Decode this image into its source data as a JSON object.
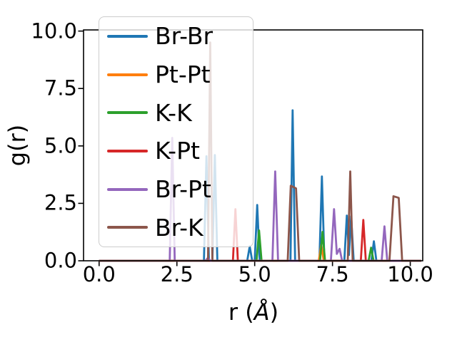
{
  "chart_data": {
    "type": "line",
    "title": "",
    "xlabel": "r (Å)",
    "xlabel_prefix": "r (",
    "xlabel_symbol": "Å",
    "xlabel_suffix": ")",
    "ylabel": "g(r)",
    "xlim": [
      -0.5,
      10.4
    ],
    "ylim": [
      0,
      10.05
    ],
    "xticks": [
      0,
      2.5,
      5,
      7.5,
      10
    ],
    "yticks": [
      0,
      2.5,
      5,
      7.5,
      10
    ],
    "xticklabels": [
      "0.0",
      "2.5",
      "5.0",
      "7.5",
      "10.0"
    ],
    "yticklabels": [
      "0.0",
      "2.5",
      "5.0",
      "7.5",
      "10.0"
    ],
    "grid": false,
    "legend_position": "upper left",
    "background_color": "#ffffff",
    "axis_color": "#000000",
    "series": [
      {
        "name": "Br-Br",
        "color": "#1f77b4",
        "points": [
          [
            0,
            0
          ],
          [
            3.37,
            0
          ],
          [
            3.45,
            4.55
          ],
          [
            3.53,
            0
          ],
          [
            3.64,
            0
          ],
          [
            3.72,
            4.6
          ],
          [
            3.8,
            0
          ],
          [
            4.76,
            0
          ],
          [
            4.84,
            0.63
          ],
          [
            4.92,
            0
          ],
          [
            5.0,
            0
          ],
          [
            5.08,
            2.43
          ],
          [
            5.16,
            0
          ],
          [
            6.15,
            0
          ],
          [
            6.22,
            6.55
          ],
          [
            6.3,
            0
          ],
          [
            7.08,
            0
          ],
          [
            7.16,
            3.67
          ],
          [
            7.24,
            0
          ],
          [
            7.88,
            0
          ],
          [
            7.96,
            1.97
          ],
          [
            8.03,
            0.25
          ],
          [
            8.1,
            1.94
          ],
          [
            8.18,
            0
          ],
          [
            8.75,
            0
          ],
          [
            8.83,
            0.85
          ],
          [
            8.91,
            0
          ],
          [
            10.35,
            0
          ]
        ]
      },
      {
        "name": "Pt-Pt",
        "color": "#ff7f0e",
        "points": [
          [
            0,
            0
          ],
          [
            7.06,
            0
          ],
          [
            7.14,
            0.7
          ],
          [
            7.22,
            0
          ],
          [
            10.35,
            0
          ]
        ]
      },
      {
        "name": "K-K",
        "color": "#2ca02c",
        "points": [
          [
            0,
            0
          ],
          [
            5.06,
            0
          ],
          [
            5.14,
            1.32
          ],
          [
            5.22,
            0
          ],
          [
            7.1,
            0
          ],
          [
            7.18,
            1.26
          ],
          [
            7.26,
            0
          ],
          [
            8.66,
            0
          ],
          [
            8.74,
            0.57
          ],
          [
            8.82,
            0
          ],
          [
            10.35,
            0
          ]
        ]
      },
      {
        "name": "K-Pt",
        "color": "#d62728",
        "points": [
          [
            0,
            0
          ],
          [
            4.3,
            0
          ],
          [
            4.38,
            2.25
          ],
          [
            4.46,
            0
          ],
          [
            8.41,
            0
          ],
          [
            8.49,
            1.78
          ],
          [
            8.57,
            0
          ],
          [
            10.35,
            0
          ]
        ]
      },
      {
        "name": "Br-Pt",
        "color": "#9467bd",
        "points": [
          [
            0,
            0
          ],
          [
            2.27,
            0
          ],
          [
            2.35,
            5.35
          ],
          [
            2.43,
            0
          ],
          [
            3.42,
            0
          ],
          [
            3.5,
            0.13
          ],
          [
            3.58,
            0
          ],
          [
            5.57,
            0
          ],
          [
            5.66,
            3.89
          ],
          [
            5.75,
            0
          ],
          [
            7.45,
            0
          ],
          [
            7.55,
            2.25
          ],
          [
            7.64,
            0.3
          ],
          [
            7.73,
            0.52
          ],
          [
            7.81,
            0
          ],
          [
            9.08,
            0
          ],
          [
            9.17,
            1.5
          ],
          [
            9.26,
            0
          ],
          [
            10.35,
            0
          ]
        ]
      },
      {
        "name": "Br-K",
        "color": "#8c564b",
        "points": [
          [
            0,
            0
          ],
          [
            3.5,
            0
          ],
          [
            3.57,
            9.5
          ],
          [
            3.64,
            0
          ],
          [
            6.06,
            0
          ],
          [
            6.16,
            3.27
          ],
          [
            6.33,
            3.15
          ],
          [
            6.43,
            0
          ],
          [
            7.99,
            0
          ],
          [
            8.07,
            3.89
          ],
          [
            8.15,
            0
          ],
          [
            9.33,
            0
          ],
          [
            9.46,
            2.81
          ],
          [
            9.63,
            2.74
          ],
          [
            9.74,
            0
          ],
          [
            10.35,
            0
          ]
        ]
      }
    ]
  }
}
